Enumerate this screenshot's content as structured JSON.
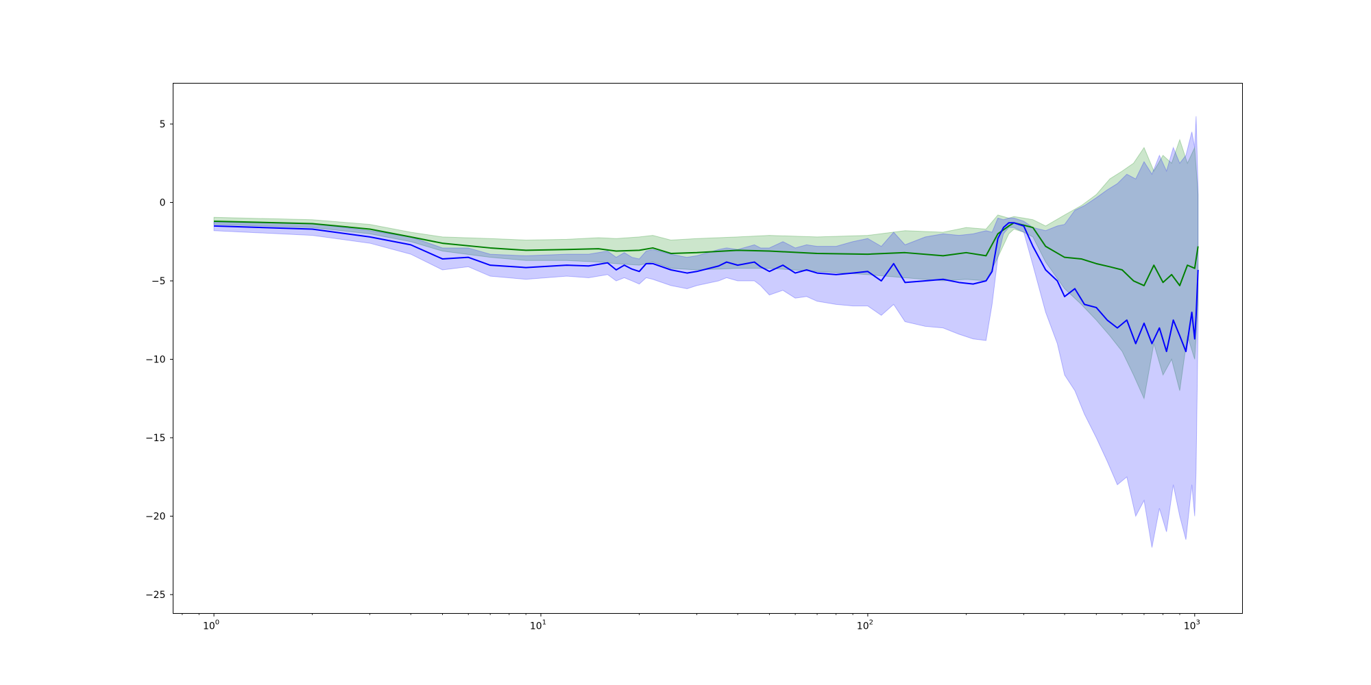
{
  "chart_data": {
    "type": "line",
    "title": "",
    "xlabel": "",
    "ylabel": "",
    "xscale": "log",
    "xlim": [
      0.75,
      1400
    ],
    "ylim": [
      -26.2,
      7.6
    ],
    "legend": "none",
    "grid": false,
    "xticks": [
      {
        "value": 1,
        "base": "10",
        "exp": "0"
      },
      {
        "value": 10,
        "base": "10",
        "exp": "1"
      },
      {
        "value": 100,
        "base": "10",
        "exp": "2"
      },
      {
        "value": 1000,
        "base": "10",
        "exp": "3"
      }
    ],
    "yticks": [
      {
        "value": 5,
        "label": "5"
      },
      {
        "value": 0,
        "label": "0"
      },
      {
        "value": -5,
        "label": "−5"
      },
      {
        "value": -10,
        "label": "−10"
      },
      {
        "value": -15,
        "label": "−15"
      },
      {
        "value": -20,
        "label": "−20"
      },
      {
        "value": -25,
        "label": "−25"
      }
    ],
    "series": [
      {
        "color": "#008000",
        "band_color": "#008000",
        "band_opacity": 0.2,
        "x": [
          1,
          2,
          3,
          4,
          5,
          7,
          9,
          12,
          15,
          17,
          20,
          22,
          25,
          30,
          40,
          50,
          70,
          100,
          130,
          170,
          200,
          230,
          250,
          270,
          280,
          300,
          320,
          350,
          400,
          450,
          500,
          550,
          600,
          650,
          700,
          750,
          800,
          850,
          900,
          950,
          1000,
          1024
        ],
        "y": [
          -1.2,
          -1.35,
          -1.7,
          -2.2,
          -2.6,
          -2.9,
          -3.05,
          -3.0,
          -2.95,
          -3.1,
          -3.05,
          -2.9,
          -3.25,
          -3.2,
          -3.05,
          -3.1,
          -3.25,
          -3.3,
          -3.2,
          -3.4,
          -3.2,
          -3.4,
          -2.0,
          -1.5,
          -1.3,
          -1.45,
          -1.6,
          -2.8,
          -3.5,
          -3.6,
          -3.9,
          -4.1,
          -4.3,
          -5.0,
          -5.3,
          -4.0,
          -5.1,
          -4.6,
          -5.3,
          -4.0,
          -4.2,
          -2.8
        ],
        "lower": [
          -1.4,
          -1.6,
          -2.0,
          -2.5,
          -3.1,
          -3.5,
          -3.7,
          -3.7,
          -3.8,
          -3.9,
          -4.0,
          -3.8,
          -4.2,
          -4.3,
          -4.2,
          -4.2,
          -4.4,
          -4.6,
          -4.8,
          -5.0,
          -4.9,
          -5.0,
          -3.5,
          -2.0,
          -1.7,
          -1.9,
          -2.2,
          -3.8,
          -5.5,
          -6.5,
          -7.5,
          -8.5,
          -9.5,
          -11.0,
          -12.5,
          -9.0,
          -11.0,
          -10.0,
          -12.0,
          -8.5,
          -10.0,
          -6.5
        ],
        "upper": [
          -0.95,
          -1.1,
          -1.4,
          -1.9,
          -2.2,
          -2.3,
          -2.4,
          -2.35,
          -2.25,
          -2.3,
          -2.2,
          -2.1,
          -2.4,
          -2.3,
          -2.2,
          -2.1,
          -2.2,
          -2.1,
          -1.8,
          -1.9,
          -1.6,
          -1.7,
          -0.8,
          -1.0,
          -0.9,
          -1.0,
          -1.1,
          -1.5,
          -0.8,
          -0.2,
          0.5,
          1.5,
          2.0,
          2.5,
          3.5,
          2.0,
          3.0,
          2.5,
          4.0,
          2.5,
          3.5,
          0.5
        ]
      },
      {
        "color": "#0000ff",
        "band_color": "#0000ff",
        "band_opacity": 0.2,
        "x": [
          1,
          2,
          3,
          4,
          5,
          6,
          7,
          9,
          12,
          14,
          16,
          17,
          18,
          19,
          20,
          21,
          22,
          25,
          28,
          30,
          35,
          37,
          40,
          45,
          47,
          50,
          55,
          60,
          65,
          70,
          80,
          90,
          100,
          110,
          120,
          130,
          150,
          170,
          190,
          210,
          230,
          240,
          250,
          260,
          270,
          280,
          300,
          320,
          350,
          380,
          400,
          430,
          460,
          500,
          540,
          580,
          620,
          660,
          700,
          740,
          780,
          820,
          860,
          900,
          940,
          980,
          1000,
          1010,
          1024
        ],
        "y": [
          -1.5,
          -1.7,
          -2.2,
          -2.7,
          -3.6,
          -3.5,
          -4.0,
          -4.15,
          -4.0,
          -4.05,
          -3.85,
          -4.3,
          -4.0,
          -4.25,
          -4.4,
          -3.9,
          -3.9,
          -4.3,
          -4.5,
          -4.4,
          -4.05,
          -3.8,
          -4.0,
          -3.8,
          -4.1,
          -4.4,
          -4.0,
          -4.5,
          -4.3,
          -4.5,
          -4.6,
          -4.5,
          -4.4,
          -5.0,
          -3.9,
          -5.1,
          -5.0,
          -4.9,
          -5.1,
          -5.2,
          -5.0,
          -4.4,
          -2.3,
          -1.6,
          -1.3,
          -1.3,
          -1.5,
          -2.8,
          -4.3,
          -5.0,
          -6.0,
          -5.5,
          -6.5,
          -6.7,
          -7.5,
          -8.0,
          -7.5,
          -9.0,
          -7.7,
          -9.0,
          -8.0,
          -9.5,
          -7.5,
          -8.5,
          -9.5,
          -7.0,
          -8.7,
          -7.2,
          -4.3
        ],
        "lower": [
          -1.8,
          -2.1,
          -2.6,
          -3.3,
          -4.3,
          -4.1,
          -4.7,
          -4.9,
          -4.7,
          -4.8,
          -4.6,
          -5.0,
          -4.8,
          -5.0,
          -5.2,
          -4.8,
          -4.9,
          -5.3,
          -5.5,
          -5.3,
          -5.0,
          -4.8,
          -5.0,
          -5.0,
          -5.3,
          -5.9,
          -5.6,
          -6.1,
          -6.0,
          -6.3,
          -6.5,
          -6.6,
          -6.6,
          -7.2,
          -6.5,
          -7.6,
          -7.9,
          -8.0,
          -8.4,
          -8.7,
          -8.8,
          -6.5,
          -3.5,
          -2.0,
          -1.6,
          -1.6,
          -1.9,
          -4.0,
          -7.0,
          -9.0,
          -11.0,
          -12.0,
          -13.5,
          -15.0,
          -16.5,
          -18.0,
          -17.5,
          -20.0,
          -19.0,
          -22.0,
          -19.5,
          -21.0,
          -18.0,
          -20.0,
          -21.5,
          -18.0,
          -20.0,
          -17.0,
          -8.0
        ],
        "upper": [
          -1.25,
          -1.35,
          -1.8,
          -2.2,
          -2.9,
          -2.9,
          -3.3,
          -3.4,
          -3.3,
          -3.3,
          -3.1,
          -3.5,
          -3.2,
          -3.5,
          -3.6,
          -3.1,
          -3.0,
          -3.3,
          -3.5,
          -3.4,
          -3.0,
          -2.9,
          -3.0,
          -2.7,
          -2.9,
          -2.9,
          -2.5,
          -2.9,
          -2.7,
          -2.8,
          -2.8,
          -2.5,
          -2.3,
          -2.8,
          -1.9,
          -2.7,
          -2.2,
          -2.0,
          -2.1,
          -2.0,
          -1.8,
          -1.9,
          -1.0,
          -1.1,
          -1.0,
          -1.0,
          -1.2,
          -1.6,
          -1.8,
          -1.5,
          -1.4,
          -0.5,
          -0.2,
          0.3,
          0.8,
          1.2,
          1.8,
          1.5,
          2.6,
          1.8,
          3.0,
          2.0,
          3.5,
          2.5,
          3.0,
          4.5,
          3.5,
          5.5,
          1.0
        ]
      }
    ]
  }
}
